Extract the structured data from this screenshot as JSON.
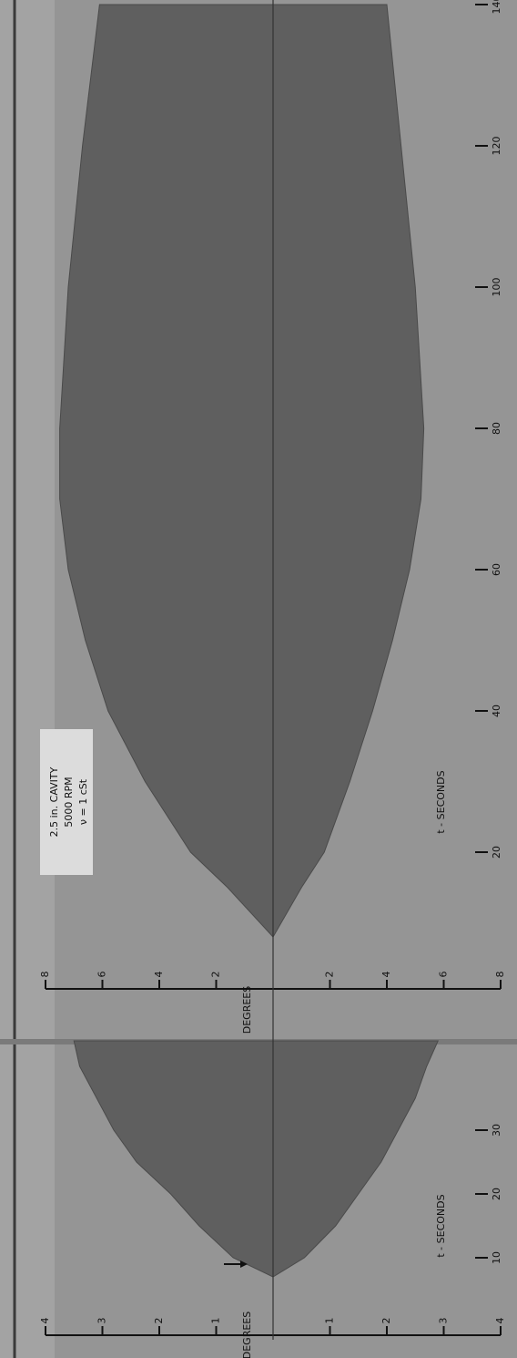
{
  "chart_data": [
    {
      "type": "area",
      "x_label": "t - SECONDS",
      "y_label": "DEGREES",
      "x": [
        0,
        5,
        7,
        10,
        15,
        20,
        25,
        30,
        35,
        40,
        44
      ],
      "series": [
        {
          "values": [
            0,
            0,
            0,
            0.7,
            1.3,
            1.8,
            2.4,
            2.8,
            3.1,
            3.4,
            3.5
          ]
        },
        {
          "values": [
            0,
            0,
            0,
            -0.55,
            -1.1,
            -1.5,
            -1.9,
            -2.2,
            -2.5,
            -2.7,
            -2.9
          ]
        }
      ],
      "color": "#5f5f5f",
      "xlim": [
        0,
        44
      ],
      "xticks": [
        10,
        20,
        30
      ],
      "ylim": [
        -4,
        4
      ],
      "yticks": [
        4,
        3,
        2,
        1,
        {
          "value": -1,
          "label": "1"
        },
        {
          "value": -2,
          "label": "2"
        },
        {
          "value": -3,
          "label": "3"
        },
        {
          "value": -4,
          "label": "4"
        }
      ]
    },
    {
      "type": "area",
      "x_label": "t - SECONDS",
      "y_label": "DEGREES",
      "annotation": [
        "2.5 in. CAVITY",
        "5000 RPM",
        "ν = 1 cSt"
      ],
      "x": [
        0,
        5,
        8,
        15,
        20,
        30,
        40,
        50,
        60,
        70,
        80,
        100,
        120,
        140
      ],
      "series": [
        {
          "values": [
            0,
            0,
            0,
            1.6,
            2.9,
            4.5,
            5.8,
            6.6,
            7.2,
            7.5,
            7.5,
            7.2,
            6.7,
            6.1
          ]
        },
        {
          "values": [
            0,
            0,
            0,
            -1.0,
            -1.8,
            -2.7,
            -3.5,
            -4.2,
            -4.8,
            -5.2,
            -5.3,
            -5.0,
            -4.5,
            -4.0
          ]
        }
      ],
      "color": "#5f5f5f",
      "xlim": [
        0,
        140
      ],
      "xticks": [
        20,
        40,
        60,
        80,
        100,
        120,
        140
      ],
      "ylim": [
        -8,
        8
      ],
      "yticks": [
        8,
        6,
        4,
        2,
        {
          "value": -2,
          "label": "2"
        },
        {
          "value": -4,
          "label": "4"
        },
        {
          "value": -6,
          "label": "6"
        },
        {
          "value": -8,
          "label": "8"
        }
      ]
    }
  ]
}
